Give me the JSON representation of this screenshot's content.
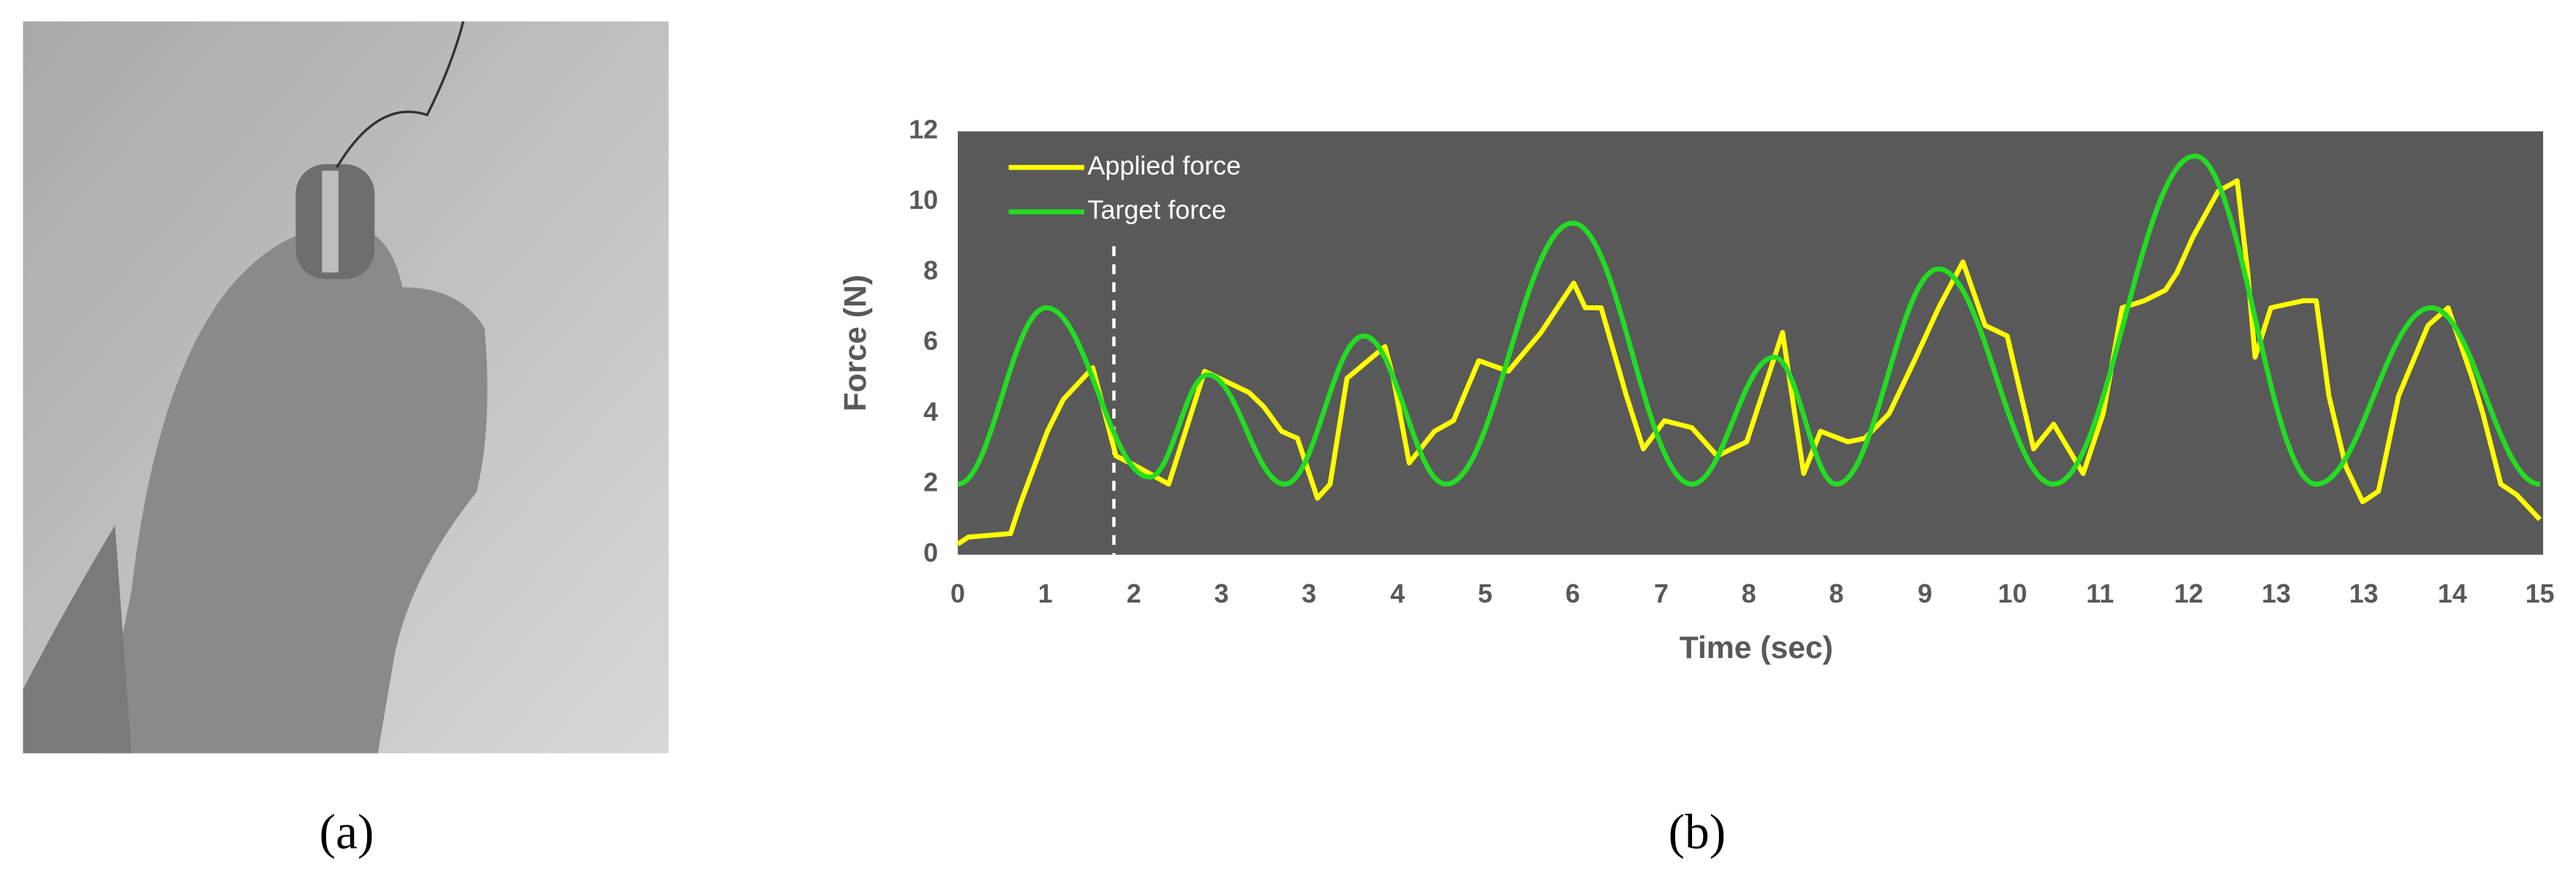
{
  "chart_data": {
    "type": "line",
    "panel_labels": [
      "(a)",
      "(b)"
    ],
    "x_label": "Time (sec)",
    "y_label": "Force  (N)",
    "xlim": [
      0,
      15
    ],
    "ylim": [
      0,
      12
    ],
    "yticks": [
      0,
      2,
      4,
      6,
      8,
      10,
      12
    ],
    "xticks": [
      0,
      {
        "value": 0.83,
        "label": "1"
      },
      {
        "value": 1.67,
        "label": "2"
      },
      {
        "value": 2.5,
        "label": "3"
      },
      {
        "value": 3.33,
        "label": "3"
      },
      {
        "value": 4.17,
        "label": "4"
      },
      5,
      {
        "value": 5.83,
        "label": "6"
      },
      {
        "value": 6.67,
        "label": "7"
      },
      {
        "value": 7.5,
        "label": "8"
      },
      {
        "value": 8.33,
        "label": "8"
      },
      {
        "value": 9.17,
        "label": "9"
      },
      10,
      {
        "value": 10.83,
        "label": "11"
      },
      {
        "value": 11.67,
        "label": "12"
      },
      {
        "value": 12.5,
        "label": "13"
      },
      {
        "value": 13.33,
        "label": "13"
      },
      {
        "value": 14.17,
        "label": "14"
      },
      15
    ],
    "background": "#595959",
    "legend": "upper left",
    "vline": 1.48,
    "series": [
      {
        "name": "Applied force",
        "color": "#ffff00",
        "smooth": false,
        "x": [
          0,
          0.1,
          0.5,
          0.6,
          0.85,
          1.0,
          1.28,
          1.5,
          1.7,
          2.0,
          2.34,
          2.76,
          2.9,
          3.07,
          3.22,
          3.41,
          3.53,
          3.69,
          4.05,
          4.13,
          4.28,
          4.52,
          4.7,
          4.94,
          5.22,
          5.53,
          5.84,
          5.95,
          6.1,
          6.34,
          6.5,
          6.7,
          6.96,
          7.2,
          7.48,
          7.82,
          8.02,
          8.18,
          8.44,
          8.6,
          8.83,
          9.07,
          9.3,
          9.53,
          9.74,
          9.95,
          10.2,
          10.39,
          10.67,
          10.86,
          11.04,
          11.25,
          11.45,
          11.56,
          11.71,
          11.95,
          12.13,
          12.23,
          12.3,
          12.45,
          12.76,
          12.88,
          13.0,
          13.16,
          13.32,
          13.47,
          13.66,
          13.94,
          14.13,
          14.36,
          14.46,
          14.63,
          14.78,
          15
        ],
        "values": [
          0.3,
          0.5,
          0.6,
          1.5,
          3.5,
          4.4,
          5.3,
          2.8,
          2.5,
          2.0,
          5.2,
          4.6,
          4.2,
          3.5,
          3.3,
          1.6,
          2.0,
          5.0,
          5.9,
          5.0,
          2.6,
          3.5,
          3.8,
          5.5,
          5.2,
          6.3,
          7.7,
          7.0,
          7.0,
          4.5,
          3.0,
          3.8,
          3.6,
          2.8,
          3.2,
          6.3,
          2.3,
          3.5,
          3.2,
          3.3,
          4.0,
          5.5,
          7.0,
          8.3,
          6.5,
          6.2,
          3.0,
          3.7,
          2.3,
          4.0,
          7.0,
          7.2,
          7.5,
          8.0,
          9.0,
          10.3,
          10.6,
          8.0,
          5.6,
          7.0,
          7.2,
          7.2,
          4.5,
          2.5,
          1.5,
          1.8,
          4.5,
          6.5,
          7.0,
          5.0,
          4.0,
          2.0,
          1.7,
          1.0
        ]
      },
      {
        "name": "Target force",
        "color": "#22dd22",
        "smooth": true,
        "x": [
          0,
          0.84,
          1.82,
          2.37,
          3.1,
          3.85,
          4.63,
          5.83,
          6.96,
          7.74,
          8.33,
          9.3,
          10.39,
          11.73,
          12.88,
          13.97,
          15
        ],
        "values": [
          2,
          7,
          2.2,
          5.1,
          2,
          6.2,
          2,
          9.4,
          2,
          5.6,
          2,
          8.1,
          2,
          11.3,
          2,
          7,
          2
        ]
      }
    ]
  }
}
